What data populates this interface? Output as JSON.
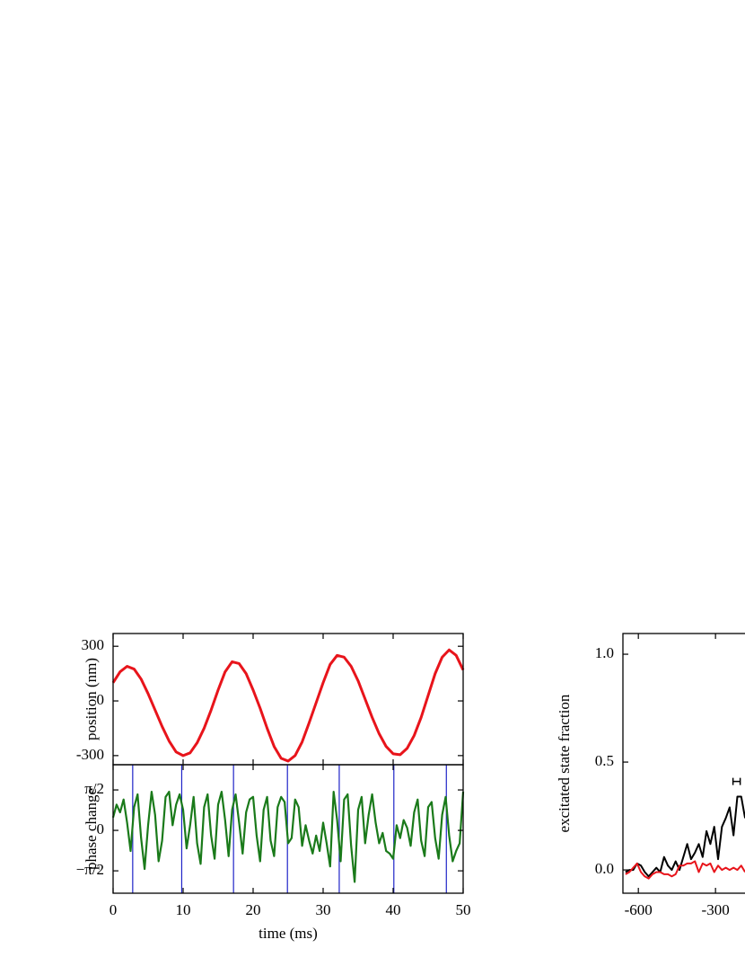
{
  "chart_data": [
    {
      "type": "line",
      "ylabel": "position (nm)",
      "xlim": [
        0,
        50
      ],
      "ylim": [
        -350,
        370
      ],
      "yticks": [
        -300,
        0,
        300
      ],
      "x": [
        0,
        1,
        2,
        3,
        4,
        5,
        6,
        7,
        8,
        9,
        10,
        11,
        12,
        13,
        14,
        15,
        16,
        17,
        18,
        19,
        20,
        21,
        22,
        23,
        24,
        25,
        26,
        27,
        28,
        29,
        30,
        31,
        32,
        33,
        34,
        35,
        36,
        37,
        38,
        39,
        40,
        41,
        42,
        43,
        44,
        45,
        46,
        47,
        48,
        49,
        50
      ],
      "series": [
        {
          "color": "#e8141b",
          "values": [
            100,
            160,
            190,
            175,
            120,
            40,
            -50,
            -140,
            -220,
            -280,
            -300,
            -285,
            -230,
            -150,
            -50,
            60,
            160,
            215,
            205,
            150,
            60,
            -40,
            -150,
            -250,
            -315,
            -330,
            -300,
            -225,
            -120,
            -10,
            100,
            200,
            250,
            240,
            190,
            110,
            10,
            -90,
            -180,
            -250,
            -290,
            -295,
            -260,
            -190,
            -90,
            30,
            150,
            240,
            280,
            250,
            170
          ]
        }
      ]
    },
    {
      "type": "line",
      "ylabel": "phase change",
      "xlabel": "time (ms)",
      "xlim": [
        0,
        50
      ],
      "ylim": [
        -2.44,
        2.55
      ],
      "xticks": [
        0,
        10,
        20,
        30,
        40,
        50
      ],
      "yticks": [
        {
          "value": 1.5708,
          "label": "π/2"
        },
        0,
        {
          "value": -1.5708,
          "label": "−π/2"
        }
      ],
      "vlines": [
        2.8,
        9.8,
        17.2,
        24.9,
        32.3,
        40.1,
        47.6
      ],
      "vline_color": "#1f24c8",
      "x": [
        0,
        0.5,
        1,
        1.5,
        2,
        2.5,
        3,
        3.5,
        4,
        4.5,
        5,
        5.5,
        6,
        6.5,
        7,
        7.5,
        8,
        8.5,
        9,
        9.5,
        10,
        10.5,
        11,
        11.5,
        12,
        12.5,
        13,
        13.5,
        14,
        14.5,
        15,
        15.5,
        16,
        16.5,
        17,
        17.5,
        18,
        18.5,
        19,
        19.5,
        20,
        20.5,
        21,
        21.5,
        22,
        22.5,
        23,
        23.5,
        24,
        24.5,
        25,
        25.5,
        26,
        26.5,
        27,
        27.5,
        28,
        28.5,
        29,
        29.5,
        30,
        30.5,
        31,
        31.5,
        32,
        32.5,
        33,
        33.5,
        34,
        34.5,
        35,
        35.5,
        36,
        36.5,
        37,
        37.5,
        38,
        38.5,
        39,
        39.5,
        40,
        40.5,
        41,
        41.5,
        42,
        42.5,
        43,
        43.5,
        44,
        44.5,
        45,
        45.5,
        46,
        46.5,
        47,
        47.5,
        48,
        48.5,
        49,
        49.5,
        50
      ],
      "series": [
        {
          "color": "#1a7a1a",
          "values": [
            0.5,
            1.0,
            0.7,
            1.2,
            0.3,
            -0.8,
            0.9,
            1.4,
            -0.3,
            -1.5,
            0.2,
            1.5,
            0.6,
            -1.2,
            -0.4,
            1.3,
            1.5,
            0.2,
            1.0,
            1.4,
            0.8,
            -0.7,
            0.2,
            1.3,
            -0.5,
            -1.3,
            0.9,
            1.4,
            -0.2,
            -1.1,
            1.0,
            1.5,
            0.4,
            -1.0,
            0.8,
            1.4,
            0.3,
            -0.9,
            0.7,
            1.2,
            1.3,
            -0.2,
            -1.2,
            0.8,
            1.3,
            -0.4,
            -1.0,
            0.9,
            1.3,
            1.1,
            -0.5,
            -0.3,
            1.2,
            0.9,
            -0.6,
            0.2,
            -0.4,
            -0.9,
            -0.2,
            -0.8,
            0.3,
            -0.5,
            -1.4,
            1.5,
            0.4,
            -1.2,
            1.2,
            1.4,
            -0.6,
            -2.0,
            0.8,
            1.3,
            -0.5,
            0.6,
            1.4,
            0.3,
            -0.5,
            -0.1,
            -0.8,
            -0.9,
            -1.1,
            0.2,
            -0.3,
            0.4,
            0.1,
            -0.6,
            0.7,
            1.2,
            -0.4,
            -1.0,
            0.9,
            1.1,
            -0.3,
            -1.1,
            0.6,
            1.3,
            -0.2,
            -1.2,
            -0.8,
            -0.5,
            1.5
          ]
        }
      ]
    },
    {
      "type": "line",
      "ylabel": "excitated state fraction",
      "xlim": [
        -660,
        600
      ],
      "ylim": [
        -0.108,
        1.096
      ],
      "xticks": [
        -600,
        -300
      ],
      "yticks": [
        {
          "value": 0,
          "label": "0.0"
        },
        0.5,
        {
          "value": 1,
          "label": "1.0"
        }
      ],
      "x": [
        -650,
        -635,
        -620,
        -605,
        -590,
        -575,
        -560,
        -545,
        -530,
        -515,
        -500,
        -485,
        -470,
        -455,
        -440,
        -425,
        -410,
        -395,
        -380,
        -365,
        -350,
        -335,
        -320,
        -305,
        -290,
        -275,
        -260,
        -245,
        -230,
        -215,
        -200,
        -185
      ],
      "series": [
        {
          "color": "#000000",
          "values": [
            -0.01,
            0.0,
            0.0,
            0.03,
            0.02,
            -0.01,
            -0.03,
            -0.01,
            0.01,
            -0.01,
            0.06,
            0.02,
            0.0,
            0.04,
            0.0,
            0.06,
            0.12,
            0.05,
            0.08,
            0.12,
            0.06,
            0.18,
            0.12,
            0.2,
            0.05,
            0.2,
            0.24,
            0.29,
            0.16,
            0.34,
            0.34,
            0.24
          ]
        },
        {
          "color": "#e8141b",
          "values": [
            -0.02,
            -0.01,
            0.01,
            0.03,
            -0.01,
            -0.03,
            -0.04,
            -0.02,
            -0.01,
            -0.01,
            -0.02,
            -0.02,
            -0.03,
            -0.02,
            0.02,
            0.02,
            0.03,
            0.03,
            0.04,
            -0.01,
            0.03,
            0.02,
            0.03,
            -0.01,
            0.02,
            0.0,
            0.01,
            0.0,
            0.01,
            0.0,
            0.02,
            -0.01
          ]
        }
      ],
      "error_bar": {
        "x": -218,
        "y": 0.41,
        "xerr": 14
      }
    }
  ]
}
